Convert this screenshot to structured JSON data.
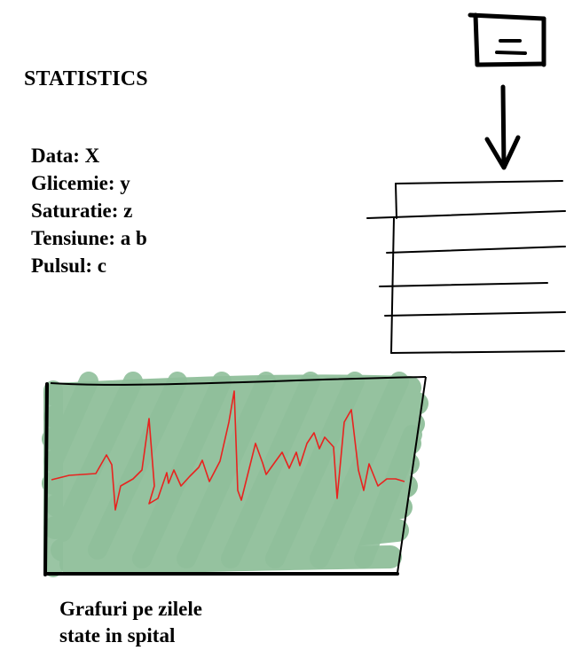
{
  "title": "STATISTICS",
  "stats": {
    "date": "Data: X",
    "glucose": "Glicemie: y",
    "saturation": "Saturatie: z",
    "pressure": "Tensiune: a b",
    "pulse": "Pulsul: c"
  },
  "caption": {
    "line1": "Grafuri pe zilele",
    "line2": "state in spital"
  },
  "colors": {
    "ink": "#000000",
    "shading": "#8fbf9a",
    "signal": "#e8231f"
  },
  "icons": {
    "menu_button": "menu-list-icon",
    "arrow": "arrow-down-icon"
  }
}
